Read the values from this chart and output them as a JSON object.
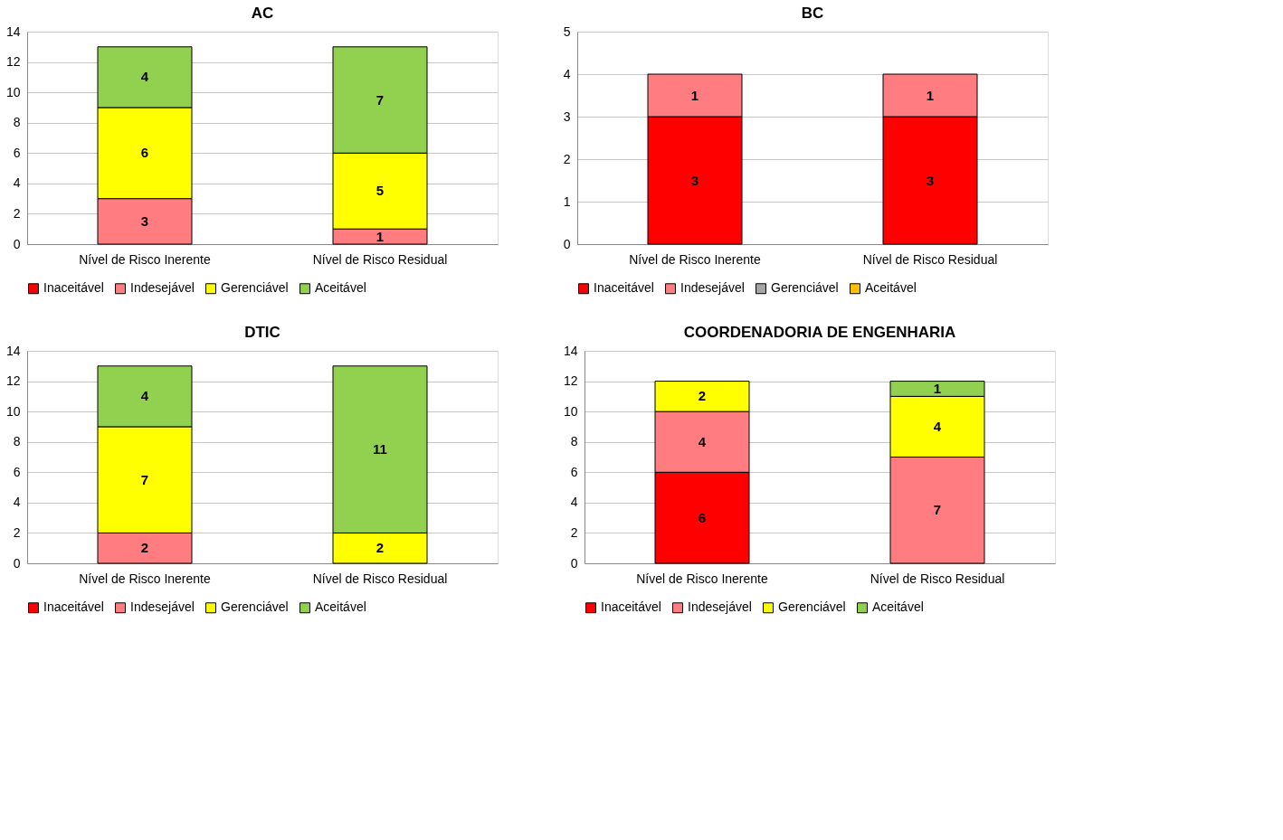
{
  "chart_data": [
    {
      "type": "bar",
      "title": "AC",
      "stacked": true,
      "data_labels": true,
      "grid": "y",
      "legend": "bottom",
      "ylim": [
        0,
        14
      ],
      "yticks": [
        0,
        2,
        4,
        6,
        8,
        10,
        12,
        14
      ],
      "categories": [
        "Nível de Risco Inerente",
        "Nível de Risco Residual"
      ],
      "series": [
        {
          "name": "Inaceitável",
          "color": "#ff0000",
          "values": [
            null,
            null
          ]
        },
        {
          "name": "Indesejável",
          "color": "#ff7c80",
          "values": [
            3,
            1
          ]
        },
        {
          "name": "Gerenciável",
          "color": "#ffff00",
          "values": [
            6,
            5
          ]
        },
        {
          "name": "Aceitável",
          "color": "#92d050",
          "values": [
            4,
            7
          ]
        }
      ]
    },
    {
      "type": "bar",
      "title": "BC",
      "stacked": true,
      "data_labels": true,
      "grid": "y",
      "legend": "bottom",
      "ylim": [
        0,
        5
      ],
      "yticks": [
        0,
        1,
        2,
        3,
        4,
        5
      ],
      "categories": [
        "Nível de Risco Inerente",
        "Nível de Risco Residual"
      ],
      "series": [
        {
          "name": "Inaceitável",
          "color": "#ff0000",
          "values": [
            3,
            3
          ]
        },
        {
          "name": "Indesejável",
          "color": "#ff7c80",
          "values": [
            1,
            1
          ]
        },
        {
          "name": "Gerenciável",
          "color": "#a5a5a5",
          "values": [
            null,
            null
          ]
        },
        {
          "name": "Aceitável",
          "color": "#ffc000",
          "values": [
            null,
            null
          ]
        }
      ]
    },
    {
      "type": "bar",
      "title": "DTIC",
      "stacked": true,
      "data_labels": true,
      "grid": "y",
      "legend": "bottom",
      "ylim": [
        0,
        14
      ],
      "yticks": [
        0,
        2,
        4,
        6,
        8,
        10,
        12,
        14
      ],
      "categories": [
        "Nível de Risco Inerente",
        "Nível de Risco Residual"
      ],
      "series": [
        {
          "name": "Inaceitável",
          "color": "#ff0000",
          "values": [
            null,
            null
          ]
        },
        {
          "name": "Indesejável",
          "color": "#ff7c80",
          "values": [
            2,
            null
          ]
        },
        {
          "name": "Gerenciável",
          "color": "#ffff00",
          "values": [
            7,
            2
          ]
        },
        {
          "name": "Aceitável",
          "color": "#92d050",
          "values": [
            4,
            11
          ]
        }
      ]
    },
    {
      "type": "bar",
      "title": "COORDENADORIA DE ENGENHARIA",
      "stacked": true,
      "data_labels": true,
      "grid": "y",
      "legend": "bottom",
      "ylim": [
        0,
        14
      ],
      "yticks": [
        0,
        2,
        4,
        6,
        8,
        10,
        12,
        14
      ],
      "categories": [
        "Nível de Risco Inerente",
        "Nível de Risco Residual"
      ],
      "series": [
        {
          "name": "Inaceitável",
          "color": "#ff0000",
          "values": [
            6,
            null
          ]
        },
        {
          "name": "Indesejável",
          "color": "#ff7c80",
          "values": [
            4,
            7
          ]
        },
        {
          "name": "Gerenciável",
          "color": "#ffff00",
          "values": [
            2,
            4
          ]
        },
        {
          "name": "Aceitável",
          "color": "#92d050",
          "values": [
            null,
            1
          ]
        }
      ]
    }
  ]
}
